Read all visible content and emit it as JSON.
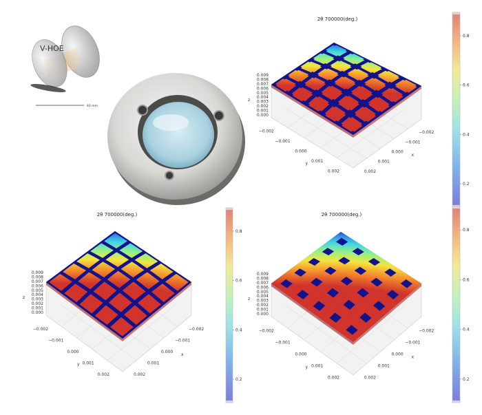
{
  "schematic": {
    "label": "V-HOE",
    "scale_label": "40 mm"
  },
  "plots": [
    {
      "id": "circles",
      "title": "2θ 700000(deg.)",
      "pattern": "circles",
      "z_label": "z",
      "x_label": "x",
      "y_label": "y",
      "z_ticks": [
        "0.009",
        "0.008",
        "0.007",
        "0.006",
        "0.005",
        "0.004",
        "0.003",
        "0.002",
        "0.001",
        "0.000"
      ],
      "y_ticks": [
        "−0.002",
        "−0.001",
        "0.000",
        "0.001",
        "0.002"
      ],
      "x_ticks": [
        "−0.002",
        "−0.001",
        "0.000",
        "0.001",
        "0.002"
      ],
      "colorbar_ticks": [
        "0.8",
        "0.6",
        "0.4",
        "0.2"
      ]
    },
    {
      "id": "squares",
      "title": "2θ 700000(deg.)",
      "pattern": "squares",
      "z_label": "z",
      "x_label": "x",
      "y_label": "y",
      "z_ticks": [
        "0.009",
        "0.008",
        "0.007",
        "0.006",
        "0.005",
        "0.004",
        "0.003",
        "0.002",
        "0.001",
        "0.000"
      ],
      "y_ticks": [
        "−0.002",
        "−0.001",
        "0.000",
        "0.001",
        "0.002"
      ],
      "x_ticks": [
        "−0.002",
        "−0.001",
        "0.000",
        "0.001",
        "0.002"
      ],
      "colorbar_ticks": [
        "0.8",
        "0.6",
        "0.4",
        "0.2"
      ]
    },
    {
      "id": "dots",
      "title": "2θ 700000(deg.)",
      "pattern": "dots",
      "z_label": "z",
      "x_label": "x",
      "y_label": "y",
      "z_ticks": [
        "0.009",
        "0.008",
        "0.007",
        "0.006",
        "0.005",
        "0.004",
        "0.003",
        "0.002",
        "0.001",
        "0.000"
      ],
      "y_ticks": [
        "−0.002",
        "−0.001",
        "0.000",
        "0.001",
        "0.002"
      ],
      "x_ticks": [
        "−0.002",
        "−0.001",
        "0.000",
        "0.001",
        "0.002"
      ],
      "colorbar_ticks": [
        "0.8",
        "0.6",
        "0.4",
        "0.2"
      ]
    }
  ]
}
